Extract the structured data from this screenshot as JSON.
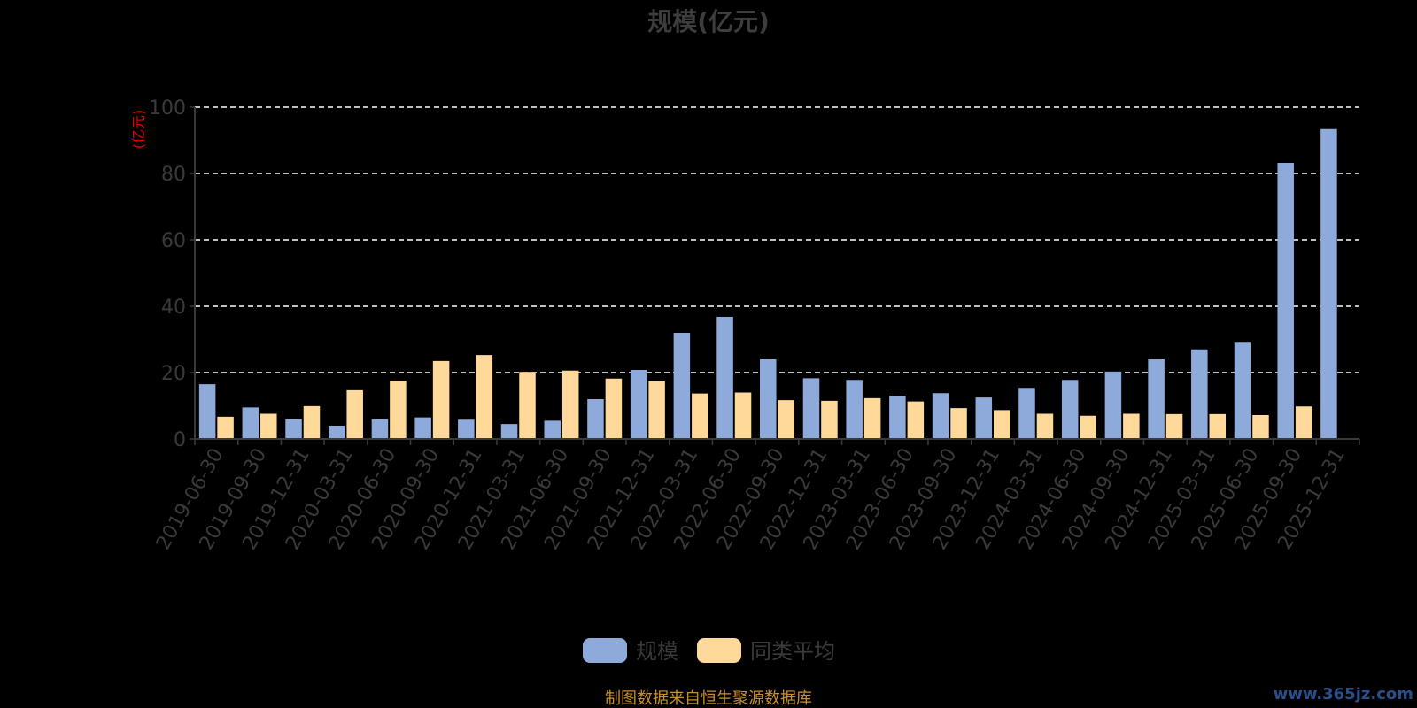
{
  "chart_data": {
    "type": "bar",
    "title": "规模(亿元)",
    "xlabel": "",
    "ylabel": "(亿元)",
    "ylim": [
      0,
      100
    ],
    "yticks": [
      0,
      20,
      40,
      60,
      80,
      100
    ],
    "grid": true,
    "legend_position": "bottom",
    "categories": [
      "2019-06-30",
      "2019-09-30",
      "2019-12-31",
      "2020-03-31",
      "2020-06-30",
      "2020-09-30",
      "2020-12-31",
      "2021-03-31",
      "2021-06-30",
      "2021-09-30",
      "2021-12-31",
      "2022-03-31",
      "2022-06-30",
      "2022-09-30",
      "2022-12-31",
      "2023-03-31",
      "2023-06-30",
      "2023-09-30",
      "2023-12-31",
      "2024-03-31",
      "2024-06-30",
      "2024-09-30",
      "2024-12-31",
      "2025-03-31",
      "2025-06-30",
      "2025-09-30",
      "2025-12-31"
    ],
    "series": [
      {
        "name": "规模",
        "color": "#8eaadb",
        "values": [
          16.5,
          9.5,
          6.0,
          4.0,
          6.0,
          6.5,
          5.8,
          4.5,
          5.5,
          12.0,
          20.8,
          32.0,
          36.8,
          24.0,
          18.3,
          17.8,
          13.0,
          13.8,
          12.5,
          15.4,
          17.8,
          20.3,
          24.0,
          27.0,
          29.0,
          83.2,
          93.4
        ]
      },
      {
        "name": "同类平均",
        "color": "#ffd99a",
        "values": [
          6.7,
          7.6,
          9.9,
          14.7,
          17.6,
          23.5,
          25.3,
          20.2,
          20.6,
          18.2,
          17.4,
          13.7,
          14.0,
          11.7,
          11.5,
          12.3,
          11.3,
          9.3,
          8.7,
          7.6,
          7.0,
          7.6,
          7.5,
          7.5,
          7.2,
          9.8,
          null
        ]
      }
    ]
  },
  "footer": {
    "source": "制图数据来自恒生聚源数据库",
    "watermark": "www.365jz.com"
  }
}
